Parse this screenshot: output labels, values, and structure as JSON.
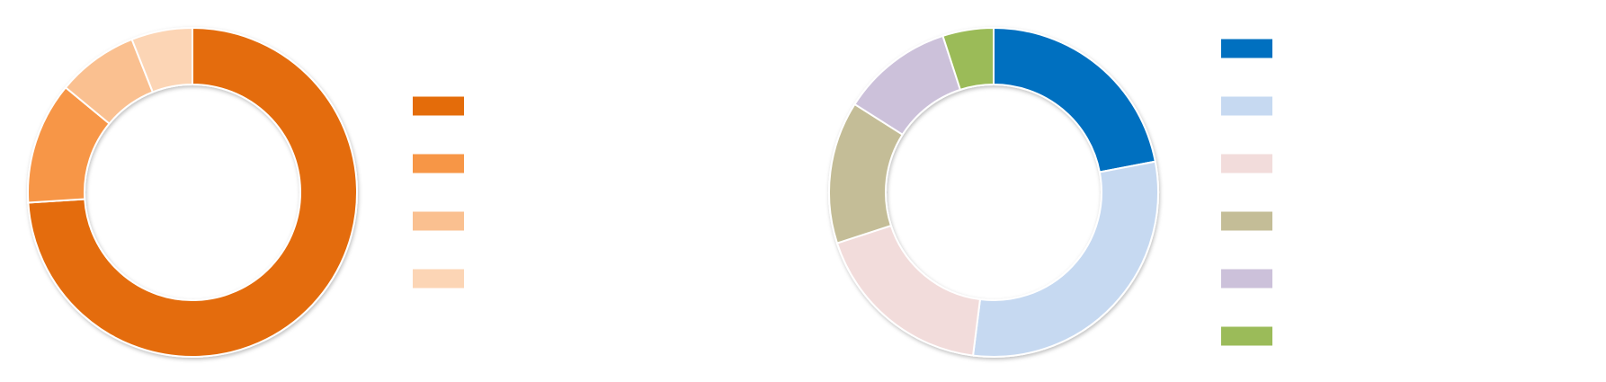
{
  "chart_data": [
    {
      "type": "donut",
      "categories": [
        null,
        null,
        null,
        null
      ],
      "values": [
        74,
        12,
        8,
        6
      ],
      "colors": [
        "#e46c0a",
        "#f79646",
        "#fac090",
        "#fcd5b5"
      ],
      "legend": "right"
    },
    {
      "type": "donut",
      "categories": [
        null,
        null,
        null,
        null,
        null,
        null
      ],
      "values": [
        22,
        30,
        18,
        14,
        11,
        5
      ],
      "colors": [
        "#0070c0",
        "#c6d9f1",
        "#f2dcdb",
        "#c4bd97",
        "#ccc1da",
        "#9bbb59"
      ],
      "legend": "right"
    }
  ]
}
